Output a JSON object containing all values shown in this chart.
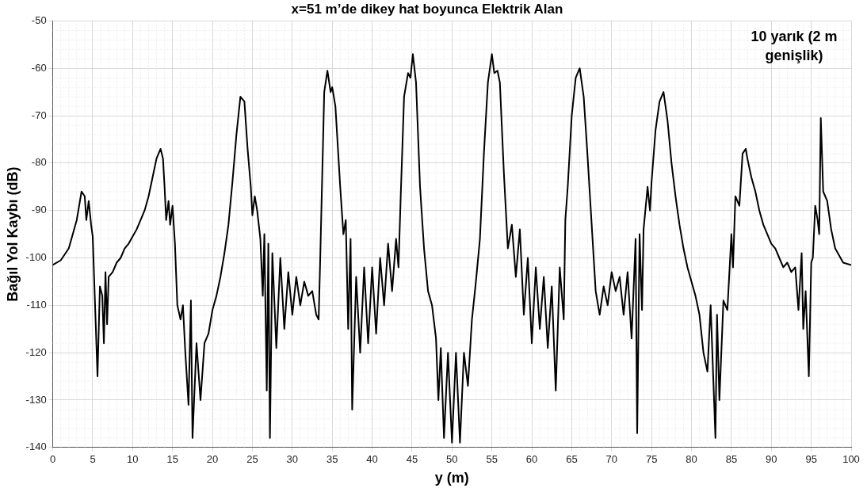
{
  "chart_data": {
    "type": "line",
    "title": "x=51 m’de dikey hat boyunca Elektrik Alan",
    "xlabel": "y (m)",
    "ylabel": "Bağıl Yol Kaybı (dB)",
    "annotations": [
      "10 yarık (2 m genişlik)"
    ],
    "x": [
      0,
      1,
      2,
      3,
      3.6,
      4,
      4.2,
      4.5,
      4.8,
      5,
      5.5,
      5.6,
      5.9,
      6.2,
      6.4,
      6.6,
      6.8,
      7,
      7.5,
      8,
      8.5,
      9,
      9.5,
      10,
      10.5,
      11,
      11.5,
      12,
      12.5,
      13,
      13.5,
      13.8,
      14,
      14.2,
      14.5,
      14.7,
      15,
      15.3,
      15.6,
      16,
      16.3,
      16.6,
      17,
      17.3,
      17.5,
      18,
      18.5,
      19,
      19.5,
      20,
      20.5,
      21,
      21.5,
      22,
      22.5,
      23,
      23.5,
      24,
      24.4,
      24.8,
      25,
      25.3,
      25.6,
      26,
      26.3,
      26.5,
      26.8,
      27,
      27.2,
      27.5,
      28,
      28.5,
      29,
      29.5,
      30,
      30.5,
      31,
      31.5,
      32,
      32.5,
      33,
      33.3,
      33.5,
      34,
      34.4,
      34.8,
      35,
      35.4,
      36,
      36.4,
      36.7,
      37,
      37.3,
      37.5,
      38,
      38.5,
      39,
      39.5,
      40,
      40.5,
      41,
      41.5,
      42,
      42.5,
      43,
      43.3,
      43.6,
      44,
      44.5,
      44.8,
      45.1,
      45.5,
      46,
      46.5,
      47,
      47.5,
      48,
      48.3,
      48.6,
      49,
      49.5,
      50,
      50.5,
      51,
      51.5,
      52,
      52.5,
      53,
      53.5,
      54,
      54.5,
      55,
      55.3,
      55.7,
      56,
      56.5,
      57,
      57.5,
      58,
      58.5,
      59,
      59.5,
      60,
      60.5,
      61,
      61.5,
      62,
      62.5,
      63,
      63.5,
      64,
      64.2,
      64.5,
      65,
      65.5,
      66,
      66.5,
      67,
      67.5,
      68,
      68.5,
      69,
      69.5,
      70,
      70.5,
      71,
      71.5,
      72,
      72.5,
      73,
      73.2,
      73.5,
      73.8,
      74,
      74.5,
      74.8,
      75,
      75.5,
      76,
      76.5,
      77,
      77.5,
      78,
      78.5,
      79,
      79.5,
      80,
      80.5,
      81,
      81.5,
      82,
      82.4,
      83,
      83.2,
      83.5,
      84,
      84.5,
      85,
      85.2,
      85.5,
      86,
      86.4,
      86.8,
      87,
      87.5,
      88,
      88.5,
      89,
      89.5,
      90,
      90.5,
      91,
      91.5,
      92,
      92.5,
      93,
      93.4,
      93.8,
      94,
      94.3,
      94.7,
      95,
      95.2,
      95.5,
      95.8,
      96,
      96.2,
      96.5,
      97,
      97.5,
      98,
      99,
      100
    ],
    "series": [
      {
        "color": "#000000",
        "values": [
          -101.5,
          -100.5,
          -98,
          -92,
          -86,
          -87,
          -92,
          -88,
          -93,
          -95.5,
          -120,
          -125,
          -106,
          -108,
          -118,
          -103,
          -114,
          -104,
          -103,
          -101,
          -100,
          -98,
          -97,
          -95.5,
          -94,
          -92,
          -90,
          -87,
          -83,
          -79,
          -77,
          -79,
          -85,
          -92,
          -88,
          -93,
          -89,
          -97,
          -110,
          -113,
          -110,
          -120,
          -131,
          -109,
          -138,
          -118,
          -130,
          -118,
          -116,
          -111,
          -108,
          -104,
          -99,
          -93,
          -84,
          -74,
          -66,
          -67,
          -77,
          -85,
          -91,
          -87,
          -90,
          -96,
          -108,
          -95,
          -128,
          -97,
          -138,
          -99,
          -119,
          -100,
          -115,
          -103,
          -112,
          -104,
          -110,
          -105,
          -108,
          -107,
          -112,
          -113,
          -100,
          -65,
          -60.5,
          -65,
          -64,
          -68,
          -85,
          -95,
          -92,
          -115,
          -96,
          -132,
          -104,
          -120,
          -102,
          -118,
          -102,
          -116,
          -100,
          -110,
          -97,
          -107,
          -96,
          -102,
          -86,
          -66,
          -61,
          -62,
          -57,
          -63,
          -85,
          -98,
          -107,
          -110,
          -117,
          -130,
          -119,
          -138,
          -120,
          -139,
          -120,
          -139,
          -120,
          -127,
          -113,
          -105,
          -96,
          -78,
          -63,
          -57,
          -61,
          -60.5,
          -63,
          -82,
          -98,
          -93,
          -104,
          -94,
          -112,
          -100,
          -118,
          -102,
          -115,
          -104,
          -119,
          -106,
          -128,
          -102,
          -113,
          -92,
          -85,
          -70,
          -62,
          -60,
          -66,
          -79,
          -93,
          -107,
          -112,
          -106,
          -110,
          -103,
          -107,
          -104,
          -112,
          -103,
          -117,
          -96,
          -137,
          -95,
          -111,
          -94,
          -85,
          -90,
          -84,
          -73,
          -67,
          -65,
          -71,
          -80,
          -87,
          -93,
          -98,
          -102,
          -105,
          -108,
          -112,
          -120,
          -124,
          -110,
          -138,
          -112,
          -130,
          -109,
          -111,
          -95,
          -102,
          -87,
          -89,
          -78,
          -77,
          -79,
          -83,
          -86,
          -90,
          -93,
          -95,
          -97,
          -98,
          -100,
          -102,
          -101,
          -103,
          -102,
          -111,
          -99,
          -115,
          -107,
          -125,
          -101,
          -100,
          -89,
          -92,
          -95,
          -70.5,
          -86,
          -88,
          -94,
          -98,
          -101,
          -101.5
        ]
      }
    ],
    "xlim": [
      0,
      100
    ],
    "xticks": [
      0,
      5,
      10,
      15,
      20,
      25,
      30,
      35,
      40,
      45,
      50,
      55,
      60,
      65,
      70,
      75,
      80,
      85,
      90,
      95,
      100
    ],
    "ylim": [
      -140,
      -50
    ],
    "yticks": [
      -140,
      -130,
      -120,
      -110,
      -100,
      -90,
      -80,
      -70,
      -60,
      -50
    ],
    "grid": true,
    "legend": false,
    "marker": "none",
    "line_style": "solid"
  }
}
